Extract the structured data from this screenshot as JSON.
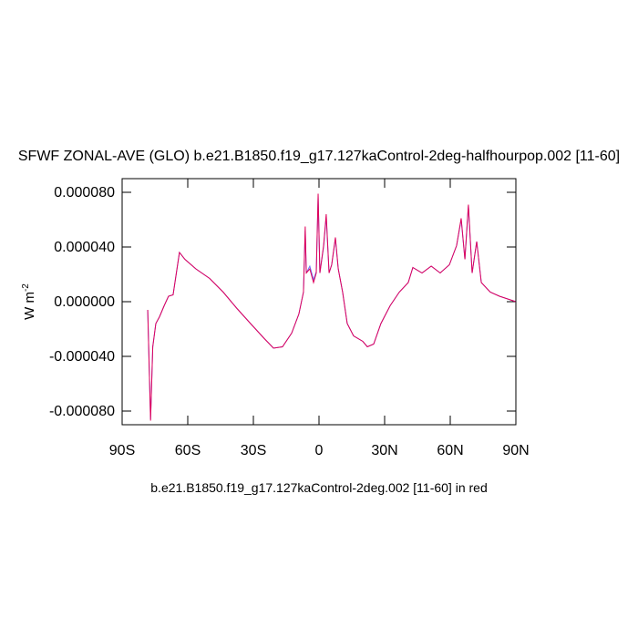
{
  "chart_data": {
    "type": "line",
    "title": "SFWF ZONAL-AVE (GLO) b.e21.B1850.f19_g17.127kaControl-2deg-halfhourpop.002 [11-60]",
    "y_label": "W m",
    "y_label_exponent": "-2",
    "caption": "b.e21.B1850.f19_g17.127kaControl-2deg.002 [11-60] in red",
    "xlim": [
      -90,
      90
    ],
    "ylim": [
      -9e-05,
      9e-05
    ],
    "xticks": [
      {
        "value": -90,
        "label": "90S"
      },
      {
        "value": -60,
        "label": "60S"
      },
      {
        "value": -30,
        "label": "30S"
      },
      0,
      {
        "value": 30,
        "label": "30N"
      },
      {
        "value": 60,
        "label": "60N"
      },
      {
        "value": 90,
        "label": "90N"
      }
    ],
    "yticks": [
      {
        "value": -8e-05,
        "label": "-0.000080"
      },
      {
        "value": -4e-05,
        "label": "-0.000040"
      },
      {
        "value": 0,
        "label": "0.000000"
      },
      {
        "value": 4e-05,
        "label": "0.000040"
      },
      {
        "value": 8e-05,
        "label": "0.000080"
      }
    ],
    "x": [
      -78.3,
      -77,
      -76,
      -74.6,
      -72.9,
      -70.8,
      -68.8,
      -66.7,
      -65.3,
      -63.8,
      -61.3,
      -56.3,
      -50,
      -43.8,
      -37.5,
      -31.3,
      -25,
      -20.8,
      -16.7,
      -12.5,
      -9.2,
      -7.1,
      -6.3,
      -5.8,
      -4.2,
      -2.5,
      -1.25,
      -0.4,
      0.4,
      2.1,
      3.3,
      4.6,
      5.8,
      7.5,
      8.8,
      10.8,
      12.9,
      15.8,
      20,
      22.1,
      25,
      28.3,
      32.5,
      36.7,
      40.8,
      42.9,
      47.1,
      51.3,
      55.4,
      59.6,
      62.9,
      65,
      66.7,
      68.3,
      70,
      72.1,
      74.2,
      78.3,
      82.5,
      90
    ],
    "series": [
      {
        "color": "#6f6fff",
        "values": [
          -6e-06,
          -8.6e-05,
          -3.3e-05,
          -1.6e-05,
          -1.1e-05,
          -3e-06,
          4e-06,
          5e-06,
          2e-05,
          3.6e-05,
          3.1e-05,
          2.4e-05,
          1.7e-05,
          7e-06,
          -5e-06,
          -1.6e-05,
          -2.7e-05,
          -3.4e-05,
          -3.3e-05,
          -2.3e-05,
          -9e-06,
          7e-06,
          5.2e-05,
          2.1e-05,
          2.6e-05,
          1.6e-05,
          2.2e-05,
          7.7e-05,
          2.1e-05,
          4e-05,
          6.2e-05,
          2.1e-05,
          2.7e-05,
          4.6e-05,
          2.4e-05,
          7e-06,
          -1.6e-05,
          -2.5e-05,
          -2.9e-05,
          -3.3e-05,
          -3.1e-05,
          -1.6e-05,
          -3e-06,
          7e-06,
          1.4e-05,
          2.5e-05,
          2.1e-05,
          2.6e-05,
          2.1e-05,
          2.7e-05,
          4.1e-05,
          6e-05,
          3.1e-05,
          7e-05,
          2.1e-05,
          4.4e-05,
          1.4e-05,
          7e-06,
          4e-06,
          0
        ]
      },
      {
        "color": "#e0005a",
        "values": [
          -6e-06,
          -8.7e-05,
          -3.3e-05,
          -1.6e-05,
          -1.1e-05,
          -3e-06,
          4e-06,
          5e-06,
          2e-05,
          3.6e-05,
          3.1e-05,
          2.4e-05,
          1.7e-05,
          7e-06,
          -5e-06,
          -1.6e-05,
          -2.7e-05,
          -3.4e-05,
          -3.3e-05,
          -2.3e-05,
          -9e-06,
          7e-06,
          5.5e-05,
          2.1e-05,
          2.4e-05,
          1.4e-05,
          2.1e-05,
          7.9e-05,
          2.1e-05,
          4.1e-05,
          6.4e-05,
          2.1e-05,
          2.7e-05,
          4.7e-05,
          2.4e-05,
          7e-06,
          -1.6e-05,
          -2.5e-05,
          -2.9e-05,
          -3.3e-05,
          -3.1e-05,
          -1.6e-05,
          -3e-06,
          7e-06,
          1.4e-05,
          2.5e-05,
          2.1e-05,
          2.6e-05,
          2.1e-05,
          2.7e-05,
          4.1e-05,
          6.1e-05,
          3.1e-05,
          7.1e-05,
          2.1e-05,
          4.4e-05,
          1.4e-05,
          7e-06,
          4e-06,
          0
        ]
      }
    ]
  }
}
